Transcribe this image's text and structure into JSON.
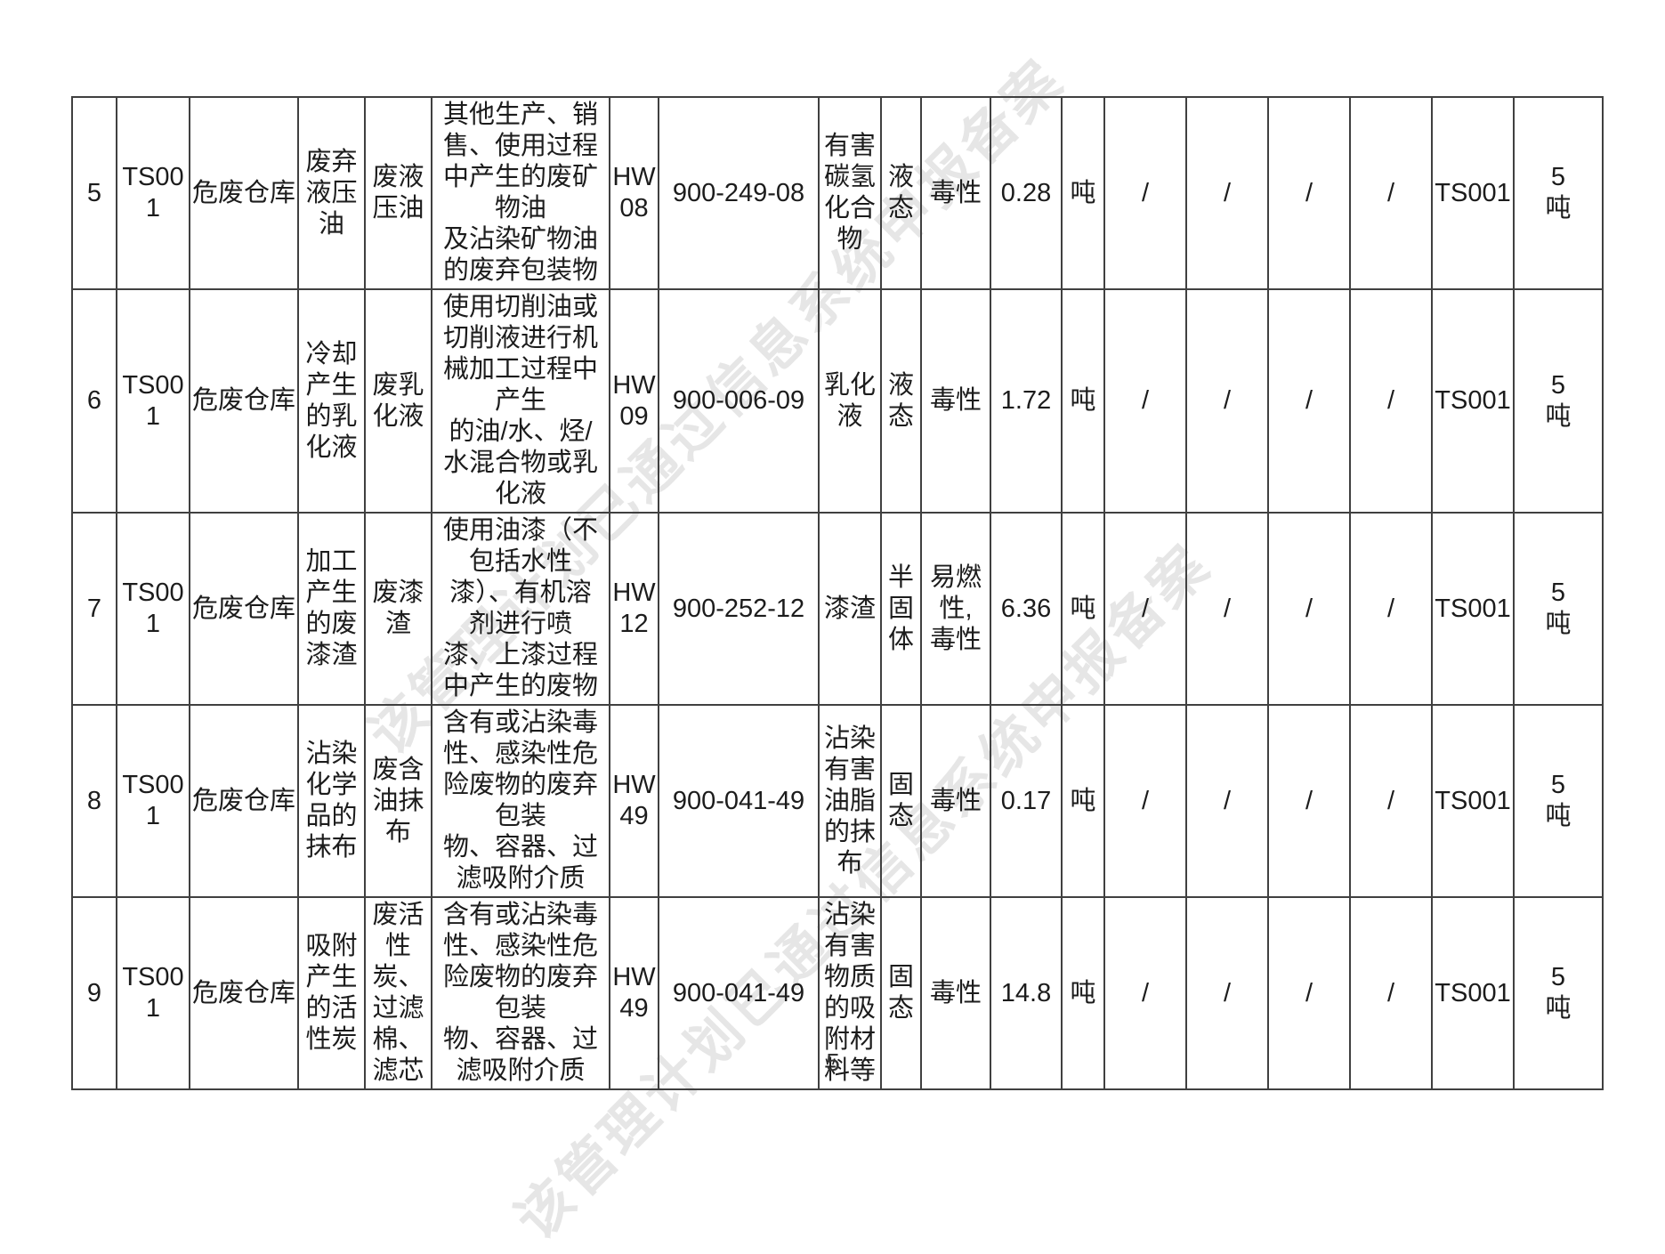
{
  "page": {
    "number": "5",
    "watermark_text": "该管理计划已通过信息系统申报备案",
    "watermark_color": "#e6e6e6",
    "border_color": "#404040"
  },
  "table": {
    "column_keys": [
      "col-row-number",
      "col-facility-code",
      "col-storage-location",
      "col-waste-name",
      "col-waste-alias",
      "col-waste-source-description",
      "col-hw-category",
      "col-waste-code",
      "col-harmful-substance",
      "col-physical-form",
      "col-hazard-property",
      "col-annual-quantity",
      "col-quantity-unit",
      "col-field-slash-1",
      "col-field-slash-2",
      "col-field-slash-3",
      "col-field-slash-4",
      "col-storage-facility-code",
      "col-storage-capacity"
    ],
    "rows": [
      {
        "cells": [
          "5",
          "TS001",
          "危废仓库",
          "废弃\n液压\n油",
          "废液\n压油",
          "其他生产、销\n售、使用过程\n中产生的废矿\n物油\n及沾染矿物油\n的废弃包装物",
          "HW\n08",
          "900-249-08",
          "有害\n碳氢\n化合\n物",
          "液\n态",
          "毒性",
          "0.28",
          "吨",
          "/",
          "/",
          "/",
          "/",
          "TS001",
          "5\n吨"
        ]
      },
      {
        "cells": [
          "6",
          "TS001",
          "危废仓库",
          "冷却\n产生\n的乳\n化液",
          "废乳\n化液",
          "使用切削油或\n切削液进行机\n械加工过程中\n产生\n的油/水、烃/\n水混合物或乳\n化液",
          "HW\n09",
          "900-006-09",
          "乳化\n液",
          "液\n态",
          "毒性",
          "1.72",
          "吨",
          "/",
          "/",
          "/",
          "/",
          "TS001",
          "5\n吨"
        ]
      },
      {
        "cells": [
          "7",
          "TS001",
          "危废仓库",
          "加工\n产生\n的废\n漆渣",
          "废漆\n渣",
          "使用油漆（不\n包括水性\n漆）、有机溶\n剂进行喷\n漆、上漆过程\n中产生的废物",
          "HW\n12",
          "900-252-12",
          "漆渣",
          "半\n固\n体",
          "易燃\n性,\n毒性",
          "6.36",
          "吨",
          "/",
          "/",
          "/",
          "/",
          "TS001",
          "5\n吨"
        ]
      },
      {
        "cells": [
          "8",
          "TS001",
          "危废仓库",
          "沾染\n化学\n品的\n抹布",
          "废含\n油抹\n布",
          "含有或沾染毒\n性、感染性危\n险废物的废弃\n包装\n物、容器、过\n滤吸附介质",
          "HW\n49",
          "900-041-49",
          "沾染\n有害\n油脂\n的抹\n布",
          "固\n态",
          "毒性",
          "0.17",
          "吨",
          "/",
          "/",
          "/",
          "/",
          "TS001",
          "5\n吨"
        ]
      },
      {
        "cells": [
          "9",
          "TS001",
          "危废仓库",
          "吸附\n产生\n的活\n性炭",
          "废活\n性\n炭、\n过滤\n棉、\n滤芯",
          "含有或沾染毒\n性、感染性危\n险废物的废弃\n包装\n物、容器、过\n滤吸附介质",
          "HW\n49",
          "900-041-49",
          "沾染\n有害\n物质\n的吸\n附材\n料等",
          "固\n态",
          "毒性",
          "14.8",
          "吨",
          "/",
          "/",
          "/",
          "/",
          "TS001",
          "5\n吨"
        ]
      }
    ]
  }
}
